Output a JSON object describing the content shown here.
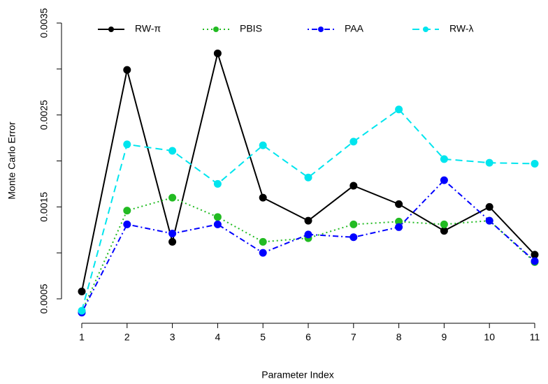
{
  "chart_data": {
    "type": "line",
    "x_label": "Parameter Index",
    "y_label": "Monte Carlo Error",
    "x": [
      1,
      2,
      3,
      4,
      5,
      6,
      7,
      8,
      9,
      10,
      11
    ],
    "xlim": [
      1,
      11
    ],
    "xticks": [
      1,
      2,
      3,
      4,
      5,
      6,
      7,
      8,
      9,
      10,
      11
    ],
    "ylim": [
      0.0005,
      0.0035
    ],
    "yticks": [
      0.0005,
      0.0015,
      0.0025,
      0.0035
    ],
    "yminor_ticks": [
      0.001,
      0.002,
      0.003
    ],
    "legend": "top",
    "series": [
      {
        "name": "RW-π",
        "color": "#000000",
        "dash": "solid",
        "values": [
          0.00058,
          0.00299,
          0.00112,
          0.00317,
          0.0016,
          0.00135,
          0.00173,
          0.00153,
          0.00124,
          0.0015,
          0.00098
        ]
      },
      {
        "name": "PBIS",
        "color": "#22bb22",
        "dash": "dotted",
        "values": [
          0.00036,
          0.00146,
          0.0016,
          0.00139,
          0.00112,
          0.00116,
          0.00131,
          0.00134,
          0.00131,
          0.00135,
          0.0009
        ]
      },
      {
        "name": "PAA",
        "color": "#0000ff",
        "dash": "dotdash",
        "values": [
          0.00035,
          0.00131,
          0.00121,
          0.00131,
          0.001,
          0.0012,
          0.00117,
          0.00128,
          0.00179,
          0.00135,
          0.00091
        ]
      },
      {
        "name": "RW-λ",
        "color": "#00e5ee",
        "dash": "dashed",
        "values": [
          0.00037,
          0.00218,
          0.00211,
          0.00175,
          0.00217,
          0.00182,
          0.00221,
          0.00256,
          0.00202,
          0.00198,
          0.00197
        ]
      }
    ]
  }
}
